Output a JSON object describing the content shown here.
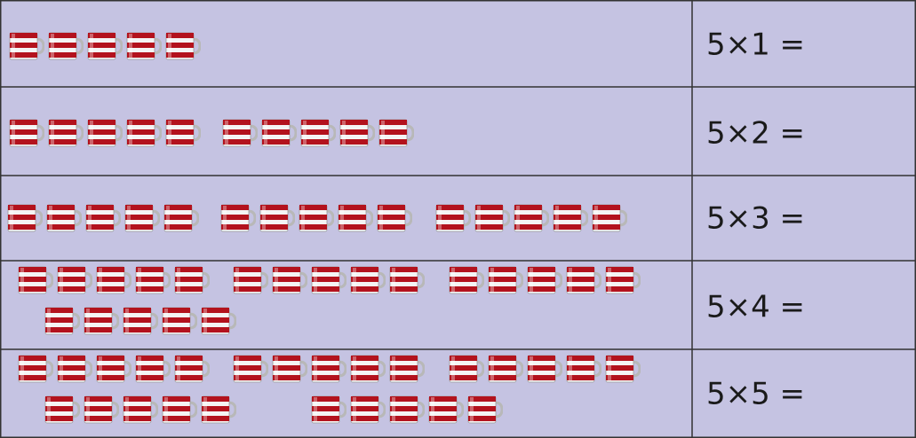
{
  "table": {
    "rows": [
      [
        "5×1 ="
      ],
      [
        "5×2 ="
      ],
      [
        "5×3 ="
      ],
      [
        "5×4 ="
      ],
      [
        "5×5 ="
      ]
    ]
  }
}
